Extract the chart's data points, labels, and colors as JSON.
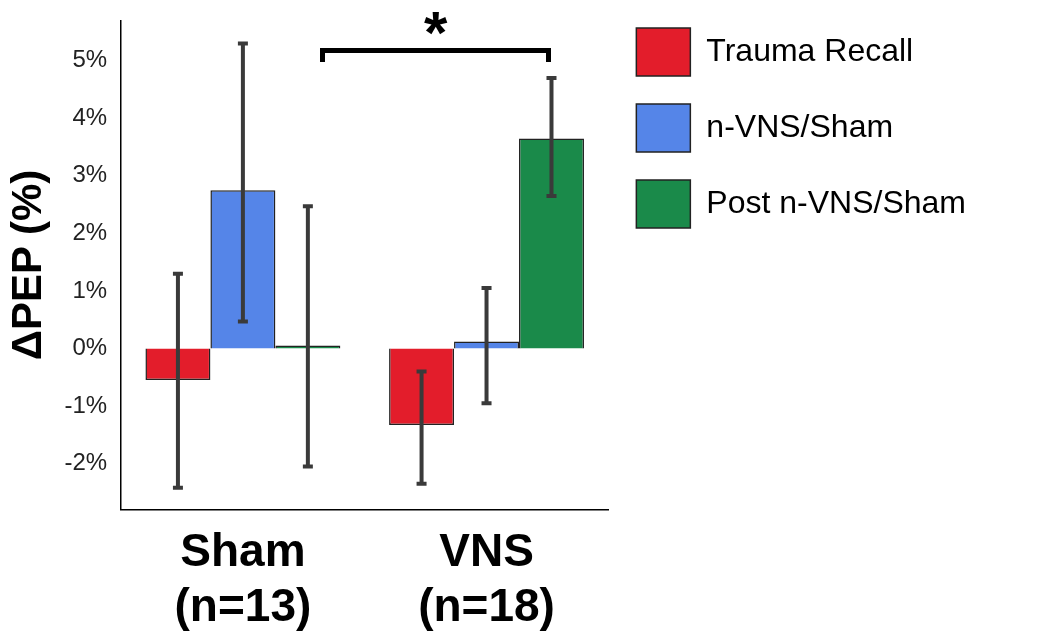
{
  "chart_data": {
    "type": "bar",
    "ylabel": "ΔPEP (%)",
    "categories": [
      "Sham\n(n=13)",
      "VNS\n(n=18)"
    ],
    "series": [
      {
        "name": "Trauma Recall",
        "color": "#e31d2b",
        "values": [
          -0.55,
          -1.33
        ],
        "errors": [
          [
            -2.42,
            1.3
          ],
          [
            -2.35,
            -0.4
          ]
        ]
      },
      {
        "name": "n-VNS/Sham",
        "color": "#5585e8",
        "values": [
          2.75,
          0.12
        ],
        "errors": [
          [
            0.47,
            5.3
          ],
          [
            -0.95,
            1.05
          ]
        ]
      },
      {
        "name": "Post n-VNS/Sham",
        "color": "#1a8a4a",
        "values": [
          0.05,
          3.65
        ],
        "errors": [
          [
            -2.05,
            2.47
          ],
          [
            2.65,
            4.7
          ]
        ]
      }
    ],
    "ylim": [
      -2.8,
      5.7
    ],
    "yticks": [
      {
        "value": -2,
        "label": "-2%"
      },
      {
        "value": -1,
        "label": "-1%"
      },
      {
        "value": 0,
        "label": "0%"
      },
      {
        "value": 1,
        "label": "1%"
      },
      {
        "value": 2,
        "label": "2%"
      },
      {
        "value": 3,
        "label": "3%"
      },
      {
        "value": 4,
        "label": "4%"
      },
      {
        "value": 5,
        "label": "5%"
      }
    ],
    "annotations": [
      "*"
    ],
    "legend": "right",
    "grid": false
  }
}
